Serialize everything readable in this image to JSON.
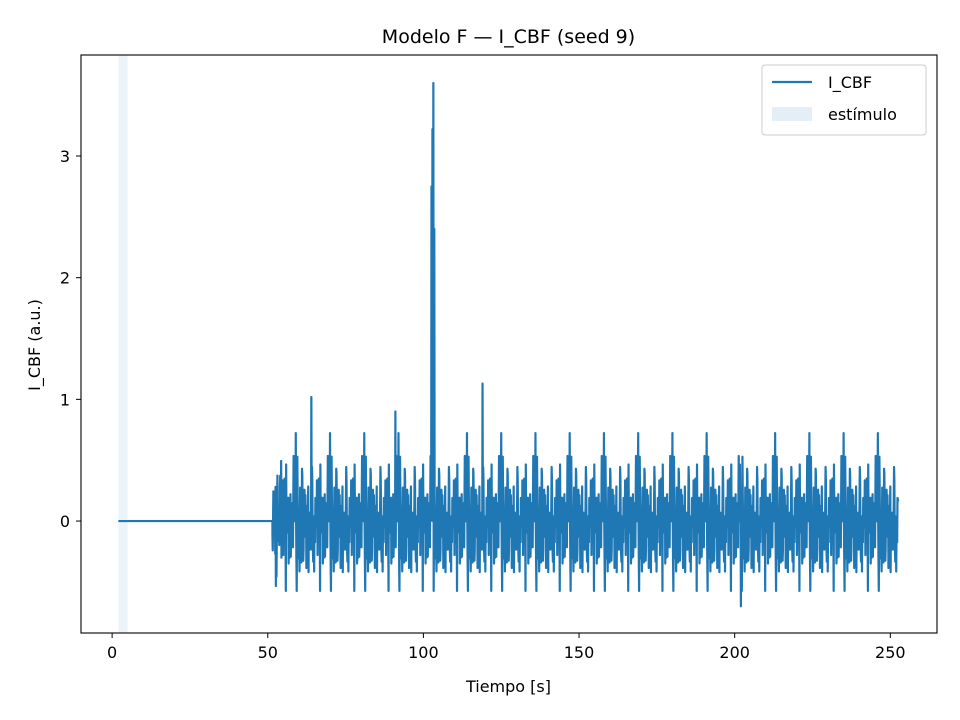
{
  "chart_data": {
    "type": "line",
    "title": "Modelo F — I_CBF (seed 9)",
    "xlabel": "Tiempo [s]",
    "ylabel": "I_CBF (a.u.)",
    "xlim": [
      -10,
      265
    ],
    "ylim": [
      -0.92,
      3.83
    ],
    "xticks": [
      0,
      50,
      100,
      150,
      200,
      250
    ],
    "xtick_labels": [
      "0",
      "50",
      "100",
      "150",
      "200",
      "250"
    ],
    "yticks": [
      0,
      1,
      2,
      3
    ],
    "ytick_labels": [
      "0",
      "1",
      "2",
      "3"
    ],
    "grid": false,
    "legend_position": "top-right",
    "stimulus_window": [
      2,
      5
    ],
    "colors": {
      "series": "#1f77b4",
      "stimulus": "#1f77b4",
      "axes": "#000000"
    },
    "series": [
      {
        "name": "I_CBF",
        "flat_segment": {
          "x": [
            2,
            51.5
          ],
          "y": 0
        },
        "noisy_segment": {
          "x_start": 51.5,
          "x_end": 252.5,
          "dt": 0.1,
          "std": 0.26,
          "min": -0.7,
          "max": 1.13
        },
        "peaks": [
          {
            "x": 102.6,
            "y": 2.75
          },
          {
            "x": 102.9,
            "y": 3.22
          },
          {
            "x": 103.2,
            "y": 3.6
          },
          {
            "x": 103.5,
            "y": 2.4
          },
          {
            "x": 119.0,
            "y": 1.13
          },
          {
            "x": 64.0,
            "y": 1.02
          },
          {
            "x": 91.0,
            "y": 0.9
          },
          {
            "x": 202.0,
            "y": -0.7
          }
        ]
      },
      {
        "name": "estímulo"
      }
    ]
  }
}
